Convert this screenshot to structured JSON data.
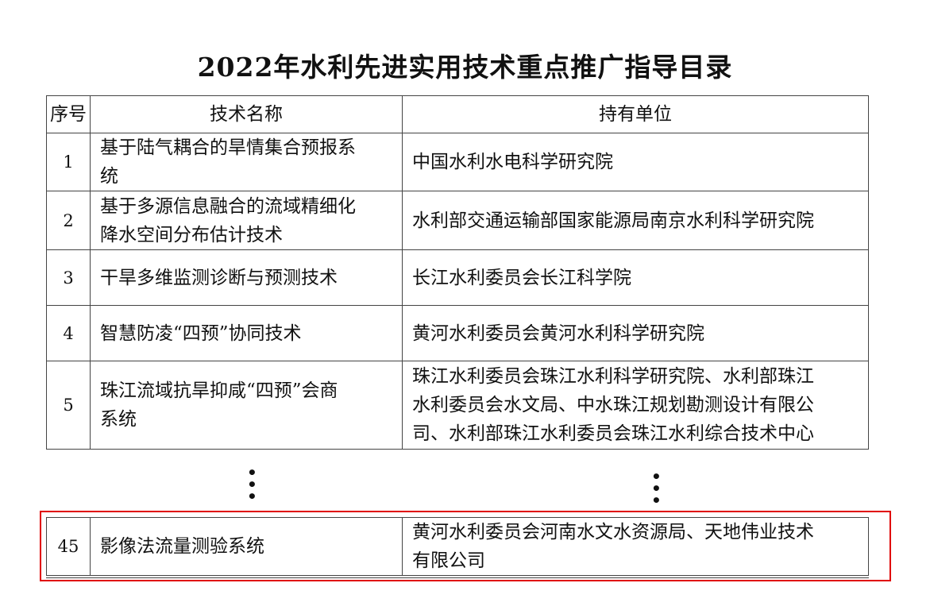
{
  "title": "2022年水利先进实用技术重点推广指导目录",
  "columns": [
    "序号",
    "技术名称",
    "持有单位"
  ],
  "rows": [
    {
      "no": "1",
      "name": [
        "基于陆气耦合的旱情集合预报系",
        "统"
      ],
      "holder": [
        "中国水利水电科学研究院"
      ]
    },
    {
      "no": "2",
      "name": [
        "基于多源信息融合的流域精细化",
        "降水空间分布估计技术"
      ],
      "holder": [
        "水利部交通运输部国家能源局南京水利科学研究院"
      ]
    },
    {
      "no": "3",
      "name": [
        "干旱多维监测诊断与预测技术"
      ],
      "holder": [
        "长江水利委员会长江科学院"
      ]
    },
    {
      "no": "4",
      "name": [
        "智慧防凌“四预”协同技术"
      ],
      "holder": [
        "黄河水利委员会黄河水利科学研究院"
      ]
    },
    {
      "no": "5",
      "name": [
        "珠江流域抗旱抑咸“四预”会商",
        "系统"
      ],
      "holder": [
        "珠江水利委员会珠江水利科学研究院、水利部珠江",
        "水利委员会水文局、中水珠江规划勘测设计有限公",
        "司、水利部珠江水利委员会珠江水利综合技术中心"
      ]
    }
  ],
  "ellipsis": "⋮",
  "highlighted_row": {
    "no": "45",
    "name": [
      "影像法流量测验系统"
    ],
    "holder": [
      "黄河水利委员会河南水文水资源局、天地伟业技术",
      "有限公司"
    ]
  },
  "highlight_color": "#e00000"
}
